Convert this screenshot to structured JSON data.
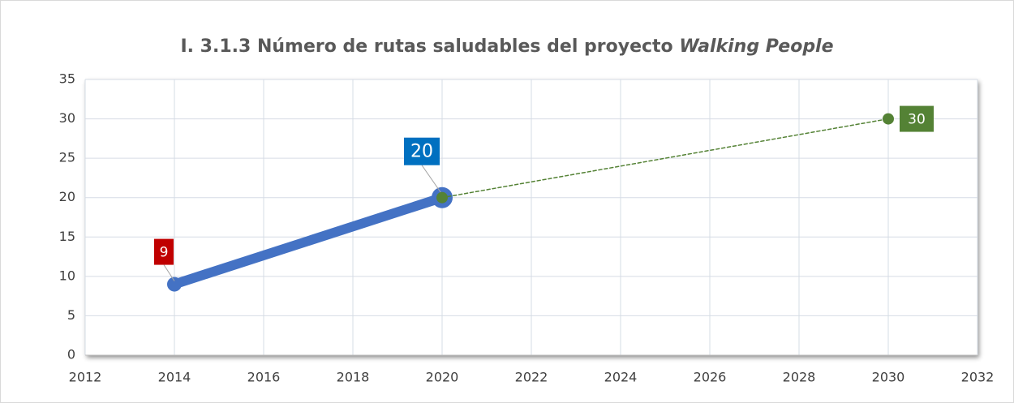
{
  "chart_data": {
    "type": "line",
    "title": "I. 3.1.3 Número de rutas saludables del proyecto",
    "title_italic": "Walking People",
    "series": [
      {
        "color": "#4472c4",
        "x": [
          2014,
          2020
        ],
        "values": [
          9,
          20
        ],
        "dashed": false,
        "label_colors": [
          "#c00000",
          "#0070c0"
        ]
      },
      {
        "color": "#548235",
        "x": [
          2020,
          2030
        ],
        "values": [
          20,
          30
        ],
        "dashed": true,
        "label_colors": [
          null,
          "#548235"
        ]
      }
    ],
    "xlim": [
      2012,
      2032
    ],
    "xticks": [
      2012,
      2014,
      2016,
      2018,
      2020,
      2022,
      2024,
      2026,
      2028,
      2030,
      2032
    ],
    "ylim": [
      0,
      35
    ],
    "yticks": [
      0,
      5,
      10,
      15,
      20,
      25,
      30,
      35
    ],
    "grid": true
  }
}
